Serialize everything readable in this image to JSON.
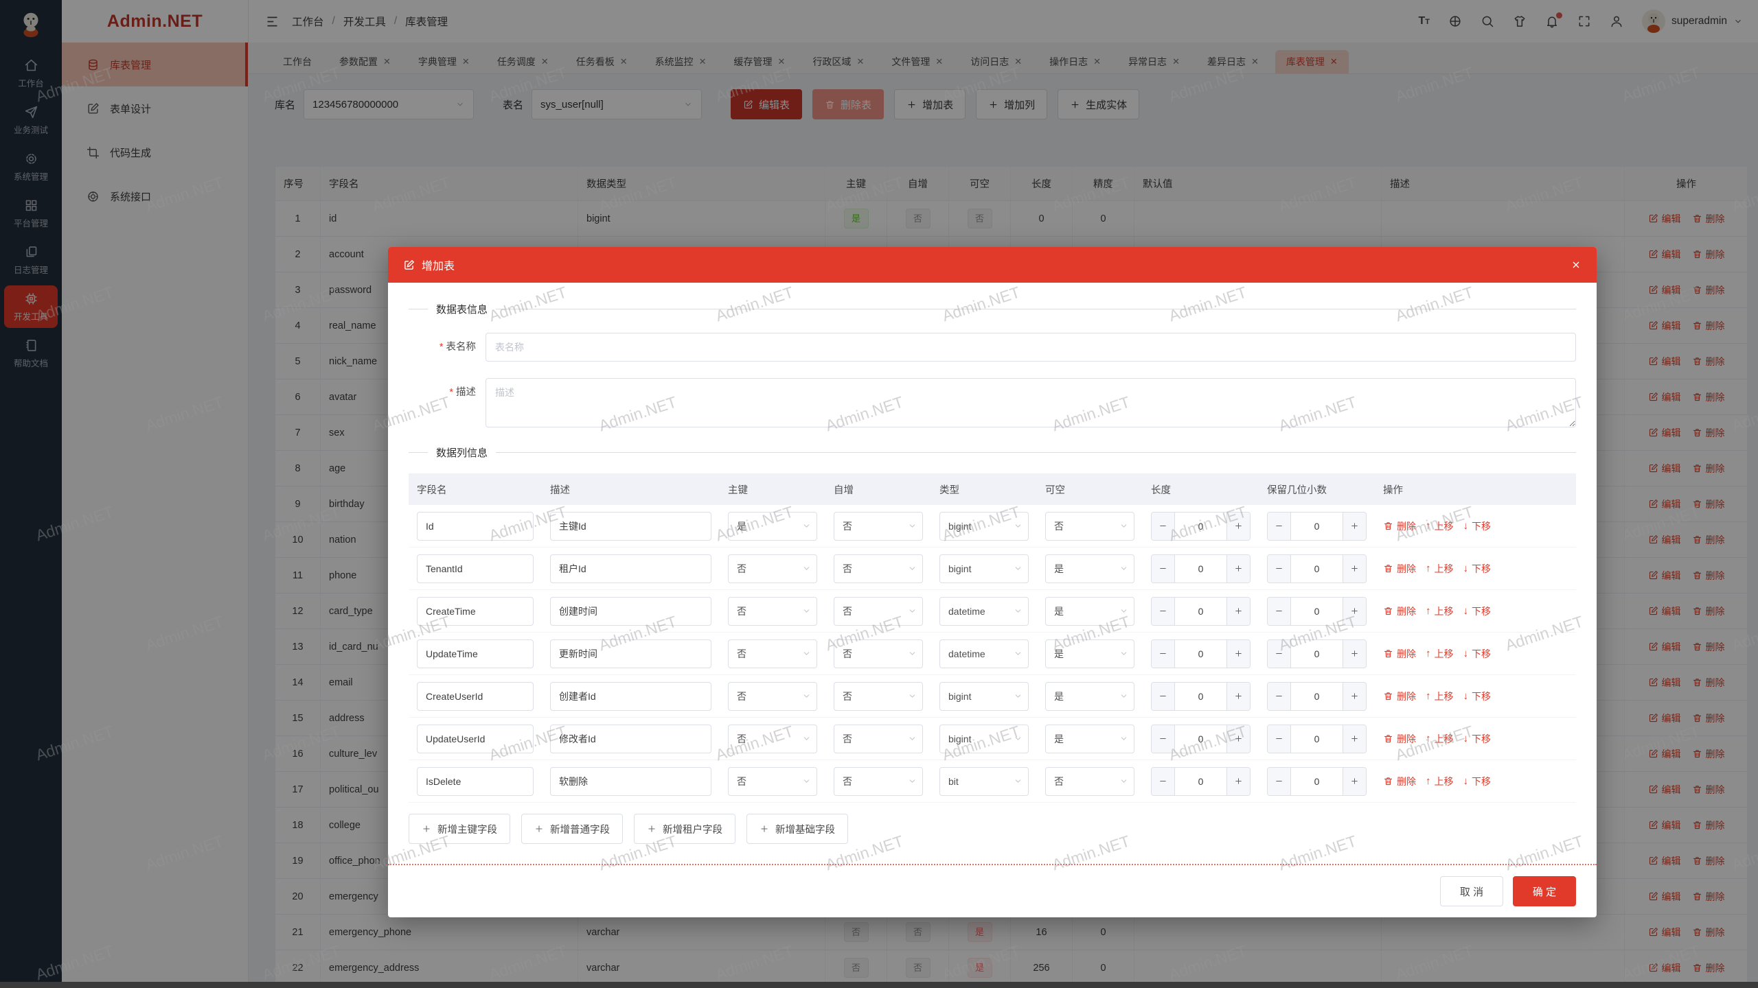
{
  "colors": {
    "accent": "#e23a2a",
    "rail_bg": "#222e3c",
    "tag_green": "#67c23a",
    "tag_gray": "#909399",
    "tag_red": "#f56c6c"
  },
  "watermark": {
    "text": "Admin.NET"
  },
  "header": {
    "logo_title": "Admin.NET",
    "breadcrumb": [
      "工作台",
      "开发工具",
      "库表管理"
    ],
    "username": "superadmin",
    "icons": [
      {
        "name": "font-size-icon",
        "type": "fontsize"
      },
      {
        "name": "language-icon",
        "type": "language"
      },
      {
        "name": "search-icon",
        "type": "search"
      },
      {
        "name": "theme-icon",
        "type": "tshirt"
      },
      {
        "name": "notification-icon",
        "type": "bell",
        "badge": true
      },
      {
        "name": "fullscreen-icon",
        "type": "fullscreen"
      },
      {
        "name": "profile-icon",
        "type": "person"
      }
    ]
  },
  "rail": {
    "items": [
      {
        "label": "工作台",
        "icon": "home",
        "active": false
      },
      {
        "label": "业务测试",
        "icon": "send",
        "active": false
      },
      {
        "label": "系统管理",
        "icon": "gear",
        "active": false
      },
      {
        "label": "平台管理",
        "icon": "grid",
        "active": false
      },
      {
        "label": "日志管理",
        "icon": "docs",
        "active": false
      },
      {
        "label": "开发工具",
        "icon": "cpu",
        "active": true
      },
      {
        "label": "帮助文档",
        "icon": "book",
        "active": false
      }
    ]
  },
  "sidebar": {
    "items": [
      {
        "label": "库表管理",
        "icon": "db",
        "active": true
      },
      {
        "label": "表单设计",
        "icon": "edit",
        "active": false
      },
      {
        "label": "代码生成",
        "icon": "crop",
        "active": false
      },
      {
        "label": "系统接口",
        "icon": "api",
        "active": false
      }
    ]
  },
  "tabs": {
    "items": [
      {
        "label": "工作台",
        "closable": false,
        "active": false
      },
      {
        "label": "参数配置",
        "closable": true,
        "active": false
      },
      {
        "label": "字典管理",
        "closable": true,
        "active": false
      },
      {
        "label": "任务调度",
        "closable": true,
        "active": false
      },
      {
        "label": "任务看板",
        "closable": true,
        "active": false
      },
      {
        "label": "系统监控",
        "closable": true,
        "active": false
      },
      {
        "label": "缓存管理",
        "closable": true,
        "active": false
      },
      {
        "label": "行政区域",
        "closable": true,
        "active": false
      },
      {
        "label": "文件管理",
        "closable": true,
        "active": false
      },
      {
        "label": "访问日志",
        "closable": true,
        "active": false
      },
      {
        "label": "操作日志",
        "closable": true,
        "active": false
      },
      {
        "label": "异常日志",
        "closable": true,
        "active": false
      },
      {
        "label": "差异日志",
        "closable": true,
        "active": false
      },
      {
        "label": "库表管理",
        "closable": true,
        "active": true
      }
    ]
  },
  "toolbar": {
    "db_label": "库名",
    "db_value": "123456780000000",
    "table_label": "表名",
    "table_value": "sys_user[null]",
    "buttons": [
      {
        "label": "编辑表",
        "kind": "solid",
        "icon": "edit"
      },
      {
        "label": "删除表",
        "kind": "soft",
        "icon": "trash"
      },
      {
        "label": "增加表",
        "kind": "plain",
        "icon": "plus"
      },
      {
        "label": "增加列",
        "kind": "plain",
        "icon": "plus"
      },
      {
        "label": "生成实体",
        "kind": "plain",
        "icon": "plus"
      }
    ]
  },
  "bg_table": {
    "headers": [
      "序号",
      "字段名",
      "数据类型",
      "主键",
      "自增",
      "可空",
      "长度",
      "精度",
      "默认值",
      "描述",
      "操作"
    ],
    "row_actions": {
      "edit": "编辑",
      "delete": "删除"
    },
    "rows": [
      {
        "num": "1",
        "name": "id",
        "type": "bigint",
        "pk": {
          "t": "是",
          "k": "green"
        },
        "inc": {
          "t": "否",
          "k": "gray"
        },
        "nul": {
          "t": "否",
          "k": "gray"
        },
        "len": "0",
        "prec": "0"
      },
      {
        "num": "2",
        "name": "account"
      },
      {
        "num": "3",
        "name": "password"
      },
      {
        "num": "4",
        "name": "real_name"
      },
      {
        "num": "5",
        "name": "nick_name"
      },
      {
        "num": "6",
        "name": "avatar"
      },
      {
        "num": "7",
        "name": "sex"
      },
      {
        "num": "8",
        "name": "age"
      },
      {
        "num": "9",
        "name": "birthday"
      },
      {
        "num": "10",
        "name": "nation"
      },
      {
        "num": "11",
        "name": "phone"
      },
      {
        "num": "12",
        "name": "card_type"
      },
      {
        "num": "13",
        "name": "id_card_nu"
      },
      {
        "num": "14",
        "name": "email"
      },
      {
        "num": "15",
        "name": "address"
      },
      {
        "num": "16",
        "name": "culture_lev"
      },
      {
        "num": "17",
        "name": "political_ou"
      },
      {
        "num": "18",
        "name": "college"
      },
      {
        "num": "19",
        "name": "office_phon"
      },
      {
        "num": "20",
        "name": "emergency"
      },
      {
        "num": "21",
        "name": "emergency_phone",
        "type": "varchar",
        "pk": {
          "t": "否",
          "k": "gray"
        },
        "inc": {
          "t": "否",
          "k": "gray"
        },
        "nul": {
          "t": "是",
          "k": "red"
        },
        "len": "16",
        "prec": "0"
      },
      {
        "num": "22",
        "name": "emergency_address",
        "type": "varchar",
        "pk": {
          "t": "否",
          "k": "gray"
        },
        "inc": {
          "t": "否",
          "k": "gray"
        },
        "nul": {
          "t": "是",
          "k": "red"
        },
        "len": "256",
        "prec": "0"
      }
    ]
  },
  "modal": {
    "title": "增加表",
    "section_table_info": "数据表信息",
    "table_name_label": "表名称",
    "table_name_placeholder": "表名称",
    "desc_label": "描述",
    "desc_placeholder": "描述",
    "section_columns": "数据列信息",
    "columns_headers": [
      "字段名",
      "描述",
      "主键",
      "自增",
      "类型",
      "可空",
      "长度",
      "保留几位小数",
      "操作"
    ],
    "row_actions": {
      "delete": "删除",
      "up": "上移",
      "down": "下移"
    },
    "rows": [
      {
        "field": "Id",
        "desc": "主键Id",
        "pk": "是",
        "inc": "否",
        "type": "bigint",
        "nul": "否",
        "len": "0",
        "dec": "0"
      },
      {
        "field": "TenantId",
        "desc": "租户Id",
        "pk": "否",
        "inc": "否",
        "type": "bigint",
        "nul": "是",
        "len": "0",
        "dec": "0"
      },
      {
        "field": "CreateTime",
        "desc": "创建时间",
        "pk": "否",
        "inc": "否",
        "type": "datetime",
        "nul": "是",
        "len": "0",
        "dec": "0"
      },
      {
        "field": "UpdateTime",
        "desc": "更新时间",
        "pk": "否",
        "inc": "否",
        "type": "datetime",
        "nul": "是",
        "len": "0",
        "dec": "0"
      },
      {
        "field": "CreateUserId",
        "desc": "创建者Id",
        "pk": "否",
        "inc": "否",
        "type": "bigint",
        "nul": "是",
        "len": "0",
        "dec": "0"
      },
      {
        "field": "UpdateUserId",
        "desc": "修改者Id",
        "pk": "否",
        "inc": "否",
        "type": "bigint",
        "nul": "是",
        "len": "0",
        "dec": "0"
      },
      {
        "field": "IsDelete",
        "desc": "软删除",
        "pk": "否",
        "inc": "否",
        "type": "bit",
        "nul": "否",
        "len": "0",
        "dec": "0"
      }
    ],
    "add_buttons": [
      "新增主键字段",
      "新增普通字段",
      "新增租户字段",
      "新增基础字段"
    ],
    "footer": {
      "cancel": "取 消",
      "ok": "确 定"
    }
  }
}
